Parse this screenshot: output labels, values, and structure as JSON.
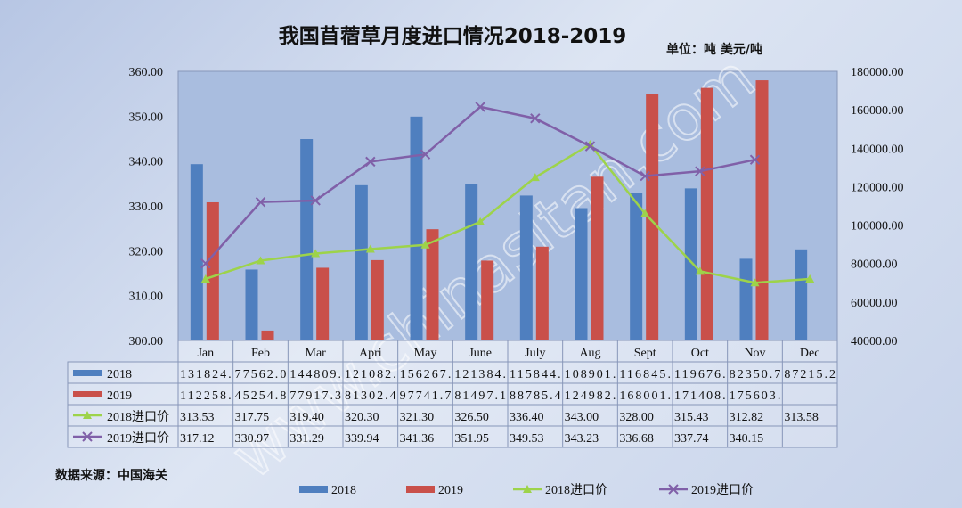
{
  "chart_data": {
    "type": "bar",
    "title": "我国苜蓿草月度进口情况2018-2019",
    "unit_label": "单位：吨 美元/吨",
    "categories": [
      "Jan",
      "Feb",
      "Mar",
      "Apri",
      "May",
      "June",
      "July",
      "Aug",
      "Sept",
      "Oct",
      "Nov",
      "Dec"
    ],
    "left_axis": {
      "min": 300,
      "max": 360,
      "step": 10,
      "ticks": [
        "300.00",
        "310.00",
        "320.00",
        "330.00",
        "340.00",
        "350.00",
        "360.00"
      ]
    },
    "right_axis": {
      "min": 40000,
      "max": 180000,
      "step": 20000,
      "ticks": [
        "40000.00",
        "60000.00",
        "80000.00",
        "100000.00",
        "120000.00",
        "140000.00",
        "160000.00",
        "180000.00"
      ]
    },
    "series": [
      {
        "name": "2018",
        "type": "bar",
        "axis": "left",
        "color": "#4f7fbf",
        "values": [
          339.3,
          315.8,
          344.9,
          334.6,
          349.9,
          334.9,
          332.3,
          329.5,
          332.9,
          333.9,
          318.2,
          320.3
        ],
        "table": [
          "131824.",
          "77562.0",
          "144809.",
          "121082.",
          "156267.",
          "121384.",
          "115844.",
          "108901.",
          "116845.",
          "119676.",
          "82350.7",
          "87215.2"
        ]
      },
      {
        "name": "2019",
        "type": "bar",
        "axis": "left",
        "color": "#c9504a",
        "values": [
          330.8,
          302.2,
          316.2,
          317.9,
          324.8,
          317.8,
          320.9,
          336.5,
          355.0,
          356.3,
          358.0,
          null
        ],
        "table": [
          "112258.",
          "45254.8",
          "77917.3",
          "81302.4",
          "97741.7",
          "81497.1",
          "88785.4",
          "124982.",
          "168001.",
          "171408.",
          "175603.",
          ""
        ]
      },
      {
        "name": "2018进口价",
        "type": "line",
        "axis": "right",
        "color": "#9dd34a",
        "marker": "triangle",
        "values": [
          72000,
          81500,
          85200,
          87500,
          89700,
          101700,
          124800,
          142000,
          106000,
          76000,
          70000,
          72000
        ],
        "table": [
          "313.53",
          "317.75",
          "319.40",
          "320.30",
          "321.30",
          "326.50",
          "336.40",
          "343.00",
          "328.00",
          "315.43",
          "312.82",
          "313.58"
        ]
      },
      {
        "name": "2019进口价",
        "type": "line",
        "axis": "right",
        "color": "#8060a8",
        "marker": "x",
        "values": [
          80000,
          112000,
          112800,
          133000,
          136800,
          161500,
          155500,
          141000,
          125500,
          128000,
          134000,
          null
        ],
        "table": [
          "317.12",
          "330.97",
          "331.29",
          "339.94",
          "341.36",
          "351.95",
          "349.53",
          "343.23",
          "336.68",
          "337.74",
          "340.15",
          ""
        ]
      }
    ],
    "source_label": "数据来源：中国海关",
    "watermark": "www.chinasitan.com",
    "grid": false
  }
}
